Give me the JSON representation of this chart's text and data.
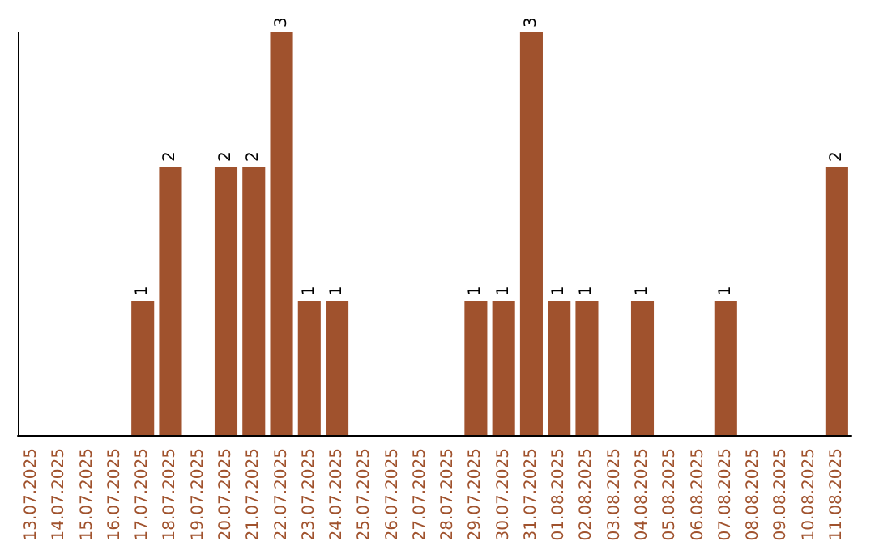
{
  "chart_data": {
    "type": "bar",
    "categories": [
      "13.07.2025",
      "14.07.2025",
      "15.07.2025",
      "16.07.2025",
      "17.07.2025",
      "18.07.2025",
      "19.07.2025",
      "20.07.2025",
      "21.07.2025",
      "22.07.2025",
      "23.07.2025",
      "24.07.2025",
      "25.07.2025",
      "26.07.2025",
      "27.07.2025",
      "28.07.2025",
      "29.07.2025",
      "30.07.2025",
      "31.07.2025",
      "01.08.2025",
      "02.08.2025",
      "03.08.2025",
      "04.08.2025",
      "05.08.2025",
      "06.08.2025",
      "07.08.2025",
      "08.08.2025",
      "09.08.2025",
      "10.08.2025",
      "11.08.2025"
    ],
    "values": [
      0,
      0,
      0,
      0,
      1,
      2,
      0,
      2,
      2,
      3,
      1,
      1,
      0,
      0,
      0,
      0,
      1,
      1,
      3,
      1,
      1,
      0,
      1,
      0,
      0,
      1,
      0,
      0,
      0,
      2
    ],
    "value_labels": [
      null,
      null,
      null,
      null,
      "1",
      "2",
      null,
      "2",
      "2",
      "3",
      "1",
      "1",
      null,
      null,
      null,
      null,
      "1",
      "1",
      "3",
      "1",
      "1",
      null,
      "1",
      null,
      null,
      "1",
      null,
      null,
      null,
      "2"
    ],
    "color": "#a0522d",
    "tick_labels": "x"
  }
}
